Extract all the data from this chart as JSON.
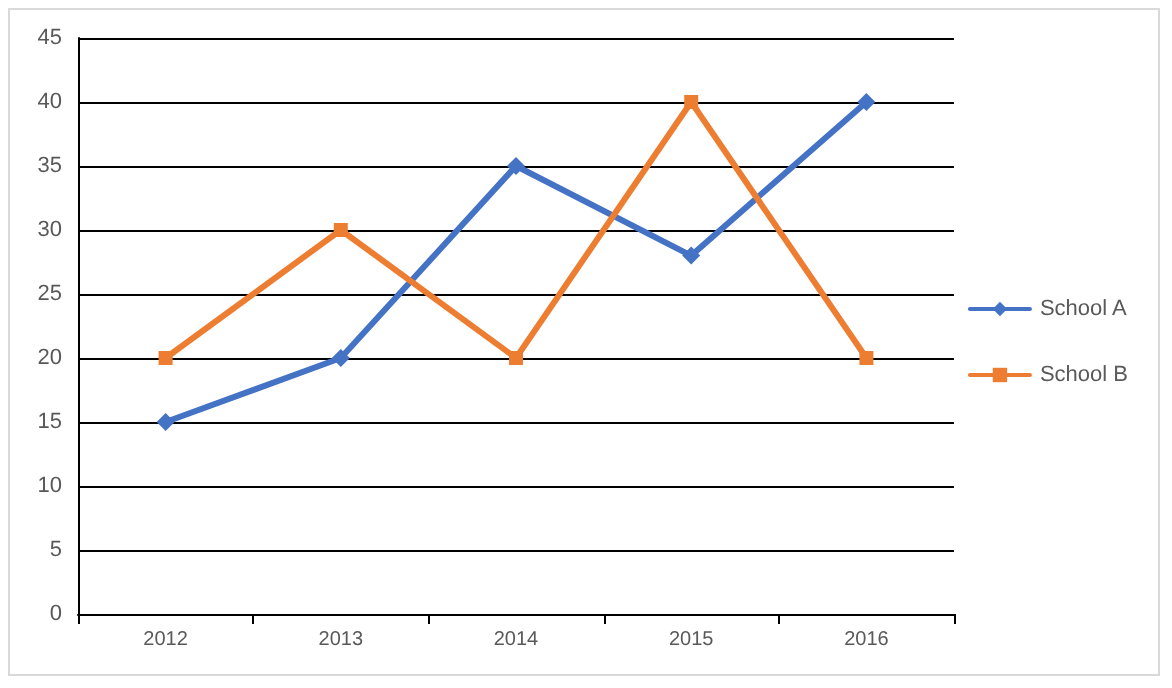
{
  "chart_data": {
    "type": "line",
    "categories": [
      "2012",
      "2013",
      "2014",
      "2015",
      "2016"
    ],
    "series": [
      {
        "name": "School A",
        "color": "#4472c4",
        "marker": "diamond",
        "values": [
          15,
          20,
          35,
          28,
          40
        ]
      },
      {
        "name": "School B",
        "color": "#ed7d31",
        "marker": "square",
        "values": [
          20,
          30,
          20,
          40,
          20
        ]
      }
    ],
    "ylim": [
      0,
      45
    ],
    "yticks": [
      0,
      5,
      10,
      15,
      20,
      25,
      30,
      35,
      40,
      45
    ],
    "grid": "y",
    "legend": "right",
    "line_style": "solid"
  }
}
